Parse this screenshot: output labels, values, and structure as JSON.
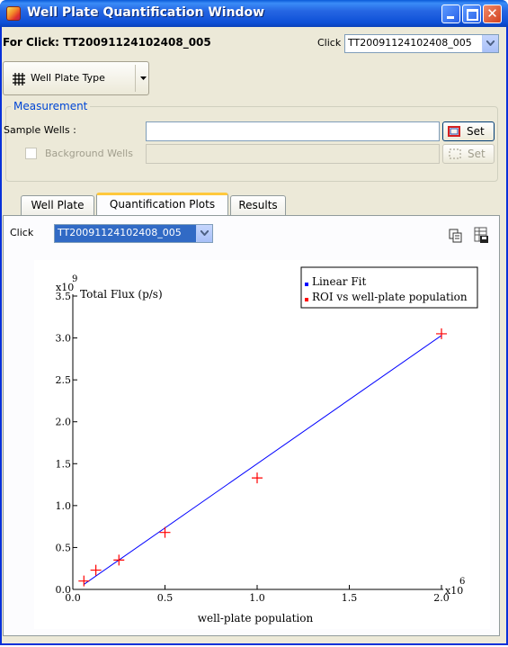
{
  "window": {
    "title": "Well Plate Quantification Window"
  },
  "header": {
    "for_click": "For Click: TT20091124102408_005",
    "click_label": "Click",
    "click_value": "TT20091124102408_005"
  },
  "toolbar": {
    "well_plate_type": "Well Plate Type"
  },
  "measurement": {
    "legend": "Measurement",
    "sample_wells_label": "Sample Wells :",
    "sample_wells_value": "",
    "background_wells_label": "Background Wells",
    "background_wells_value": "",
    "set_label": "Set"
  },
  "tabs": [
    {
      "label": "Well Plate",
      "active": false
    },
    {
      "label": "Quantification Plots",
      "active": true
    },
    {
      "label": "Results",
      "active": false
    }
  ],
  "plots": {
    "click_label": "Click",
    "click_value": "TT20091124102408_005"
  },
  "colors": {
    "line": "#0000ff",
    "point": "#ff0000",
    "title_blue": "#0046d5"
  },
  "chart_data": {
    "type": "scatter",
    "ylabel": "Total Flux (p/s)",
    "xlabel": "well-plate population",
    "y_multiplier": "x10",
    "y_exponent": "9",
    "x_multiplier": "x10",
    "x_exponent": "6",
    "xlim": [
      0,
      2.0
    ],
    "ylim": [
      0,
      3.5
    ],
    "xticks": [
      "0.0",
      "0.5",
      "1.0",
      "1.5",
      "2.0"
    ],
    "yticks": [
      "0.0",
      "0.5",
      "1.0",
      "1.5",
      "2.0",
      "2.5",
      "3.0",
      "3.5"
    ],
    "x_tick_values": [
      0,
      0.5,
      1.0,
      1.5,
      2.0
    ],
    "y_tick_values": [
      0,
      0.5,
      1.0,
      1.5,
      2.0,
      2.5,
      3.0,
      3.5
    ],
    "series": [
      {
        "name": "Linear Fit",
        "kind": "line",
        "color": "#0000ff",
        "x": [
          0.06,
          2.0
        ],
        "y": [
          0.06,
          3.03
        ]
      },
      {
        "name": "ROI vs well-plate population",
        "kind": "points",
        "color": "#ff0000",
        "x": [
          0.06,
          0.125,
          0.25,
          0.5,
          1.0,
          2.0
        ],
        "y": [
          0.1,
          0.23,
          0.35,
          0.68,
          1.33,
          3.05
        ]
      }
    ],
    "legend_position": "top-right",
    "grid": false
  }
}
